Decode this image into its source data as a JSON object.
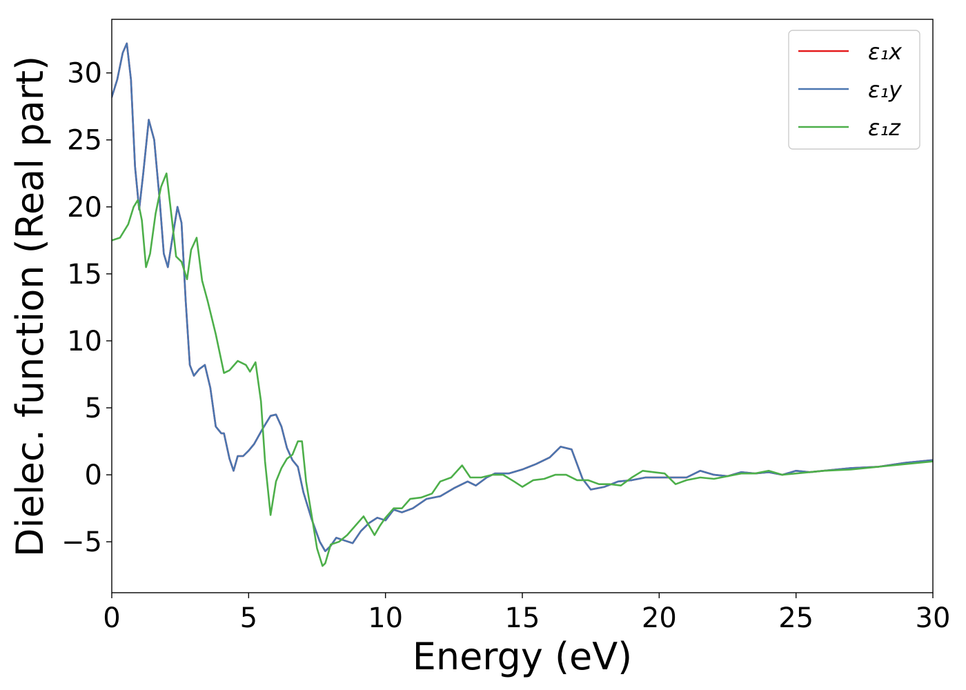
{
  "chart_data": {
    "type": "line",
    "xlabel": "Energy (eV)",
    "ylabel": "Dielec. function (Real part)",
    "xlim": [
      0,
      30
    ],
    "ylim": [
      -8.8,
      34
    ],
    "xticks": [
      0,
      5,
      10,
      15,
      20,
      25,
      30
    ],
    "yticks": [
      -5,
      0,
      5,
      10,
      15,
      20,
      25,
      30
    ],
    "ytick_labels": [
      "−5",
      "0",
      "5",
      "10",
      "15",
      "20",
      "25",
      "30"
    ],
    "grid": false,
    "legend_position": "top-right",
    "series": [
      {
        "name": "ε₁x",
        "color": "#e41a1c",
        "x": [
          0,
          0.2,
          0.4,
          0.55,
          0.7,
          0.85,
          1.0,
          1.15,
          1.35,
          1.55,
          1.75,
          1.9,
          2.05,
          2.2,
          2.4,
          2.55,
          2.7,
          2.85,
          3.0,
          3.2,
          3.4,
          3.6,
          3.8,
          4.0,
          4.1,
          4.3,
          4.45,
          4.6,
          4.8,
          5.0,
          5.2,
          5.5,
          5.8,
          6.0,
          6.2,
          6.4,
          6.6,
          6.8,
          7.0,
          7.3,
          7.6,
          7.8,
          8.0,
          8.2,
          8.5,
          8.8,
          9.1,
          9.4,
          9.7,
          10.0,
          10.3,
          10.6,
          11.0,
          11.5,
          12.0,
          12.5,
          13.0,
          13.3,
          13.7,
          14.0,
          14.5,
          15.0,
          15.5,
          16.0,
          16.4,
          16.8,
          17.2,
          17.5,
          18.0,
          18.5,
          19.0,
          19.5,
          20.0,
          20.5,
          21.0,
          21.5,
          22.0,
          22.5,
          23.0,
          23.5,
          24.0,
          24.5,
          25.0,
          25.5,
          26.0,
          27.0,
          28.0,
          29.0,
          30.0
        ],
        "y": [
          28.2,
          29.5,
          31.5,
          32.2,
          29.5,
          23.0,
          19.8,
          22.5,
          26.5,
          25.0,
          20.5,
          16.5,
          15.5,
          17.5,
          20.0,
          18.8,
          13.0,
          8.2,
          7.4,
          7.9,
          8.2,
          6.5,
          3.6,
          3.1,
          3.1,
          1.2,
          0.3,
          1.4,
          1.4,
          1.8,
          2.3,
          3.4,
          4.4,
          4.5,
          3.6,
          2.0,
          1.1,
          0.6,
          -1.3,
          -3.3,
          -5.0,
          -5.7,
          -5.3,
          -4.7,
          -4.9,
          -5.1,
          -4.2,
          -3.6,
          -3.2,
          -3.4,
          -2.6,
          -2.8,
          -2.5,
          -1.8,
          -1.6,
          -1.0,
          -0.5,
          -0.8,
          -0.2,
          0.1,
          0.1,
          0.4,
          0.8,
          1.3,
          2.1,
          1.9,
          -0.3,
          -1.1,
          -0.9,
          -0.5,
          -0.4,
          -0.2,
          -0.2,
          -0.2,
          -0.2,
          0.3,
          0.0,
          -0.1,
          0.2,
          0.1,
          0.2,
          0.0,
          0.3,
          0.2,
          0.3,
          0.5,
          0.6,
          0.9,
          1.1
        ]
      },
      {
        "name": "ε₁y",
        "color": "#4a76b0",
        "x": [
          0,
          0.2,
          0.4,
          0.55,
          0.7,
          0.85,
          1.0,
          1.15,
          1.35,
          1.55,
          1.75,
          1.9,
          2.05,
          2.2,
          2.4,
          2.55,
          2.7,
          2.85,
          3.0,
          3.2,
          3.4,
          3.6,
          3.8,
          4.0,
          4.1,
          4.3,
          4.45,
          4.6,
          4.8,
          5.0,
          5.2,
          5.5,
          5.8,
          6.0,
          6.2,
          6.4,
          6.6,
          6.8,
          7.0,
          7.3,
          7.6,
          7.8,
          8.0,
          8.2,
          8.5,
          8.8,
          9.1,
          9.4,
          9.7,
          10.0,
          10.3,
          10.6,
          11.0,
          11.5,
          12.0,
          12.5,
          13.0,
          13.3,
          13.7,
          14.0,
          14.5,
          15.0,
          15.5,
          16.0,
          16.4,
          16.8,
          17.2,
          17.5,
          18.0,
          18.5,
          19.0,
          19.5,
          20.0,
          20.5,
          21.0,
          21.5,
          22.0,
          22.5,
          23.0,
          23.5,
          24.0,
          24.5,
          25.0,
          25.5,
          26.0,
          27.0,
          28.0,
          29.0,
          30.0
        ],
        "y": [
          28.2,
          29.5,
          31.5,
          32.2,
          29.5,
          23.0,
          19.8,
          22.5,
          26.5,
          25.0,
          20.5,
          16.5,
          15.5,
          17.5,
          20.0,
          18.8,
          13.0,
          8.2,
          7.4,
          7.9,
          8.2,
          6.5,
          3.6,
          3.1,
          3.1,
          1.2,
          0.3,
          1.4,
          1.4,
          1.8,
          2.3,
          3.4,
          4.4,
          4.5,
          3.6,
          2.0,
          1.1,
          0.6,
          -1.3,
          -3.3,
          -5.0,
          -5.7,
          -5.3,
          -4.7,
          -4.9,
          -5.1,
          -4.2,
          -3.6,
          -3.2,
          -3.4,
          -2.6,
          -2.8,
          -2.5,
          -1.8,
          -1.6,
          -1.0,
          -0.5,
          -0.8,
          -0.2,
          0.1,
          0.1,
          0.4,
          0.8,
          1.3,
          2.1,
          1.9,
          -0.3,
          -1.1,
          -0.9,
          -0.5,
          -0.4,
          -0.2,
          -0.2,
          -0.2,
          -0.2,
          0.3,
          0.0,
          -0.1,
          0.2,
          0.1,
          0.2,
          0.0,
          0.3,
          0.2,
          0.3,
          0.5,
          0.6,
          0.9,
          1.1
        ]
      },
      {
        "name": "ε₁z",
        "color": "#4daf4a",
        "x": [
          0,
          0.3,
          0.6,
          0.8,
          0.95,
          1.1,
          1.25,
          1.4,
          1.6,
          1.8,
          2.0,
          2.2,
          2.35,
          2.55,
          2.75,
          2.9,
          3.1,
          3.3,
          3.5,
          3.8,
          4.1,
          4.3,
          4.6,
          4.9,
          5.05,
          5.25,
          5.45,
          5.6,
          5.8,
          6.0,
          6.2,
          6.4,
          6.6,
          6.8,
          6.95,
          7.1,
          7.3,
          7.5,
          7.7,
          7.8,
          8.0,
          8.3,
          8.6,
          8.9,
          9.2,
          9.4,
          9.6,
          9.8,
          10.0,
          10.3,
          10.6,
          10.9,
          11.3,
          11.7,
          12.0,
          12.4,
          12.8,
          13.1,
          13.5,
          13.9,
          14.3,
          14.7,
          15.0,
          15.4,
          15.8,
          16.2,
          16.6,
          17.0,
          17.4,
          17.8,
          18.2,
          18.6,
          19.0,
          19.4,
          19.8,
          20.2,
          20.6,
          21.0,
          21.5,
          22.0,
          22.5,
          23.0,
          23.5,
          24.0,
          24.5,
          25.0,
          26.0,
          27.0,
          28.0,
          29.0,
          30.0
        ],
        "y": [
          17.5,
          17.7,
          18.7,
          20.0,
          20.5,
          19.0,
          15.5,
          16.5,
          19.5,
          21.5,
          22.5,
          19.0,
          16.3,
          15.9,
          14.6,
          16.8,
          17.7,
          14.5,
          13.0,
          10.5,
          7.6,
          7.8,
          8.5,
          8.2,
          7.7,
          8.4,
          5.5,
          1.0,
          -3.0,
          -0.5,
          0.5,
          1.2,
          1.5,
          2.5,
          2.5,
          -0.5,
          -3.0,
          -5.5,
          -6.8,
          -6.6,
          -5.2,
          -5.0,
          -4.5,
          -3.8,
          -3.1,
          -3.8,
          -4.5,
          -3.8,
          -3.2,
          -2.5,
          -2.5,
          -1.8,
          -1.7,
          -1.4,
          -0.5,
          -0.2,
          0.7,
          -0.2,
          -0.2,
          0.0,
          0.0,
          -0.5,
          -0.9,
          -0.4,
          -0.3,
          0.0,
          0.0,
          -0.4,
          -0.4,
          -0.7,
          -0.7,
          -0.8,
          -0.2,
          0.3,
          0.2,
          0.1,
          -0.7,
          -0.4,
          -0.2,
          -0.3,
          -0.1,
          0.1,
          0.1,
          0.3,
          0.0,
          0.1,
          0.3,
          0.4,
          0.6,
          0.8,
          1.0
        ]
      }
    ]
  }
}
